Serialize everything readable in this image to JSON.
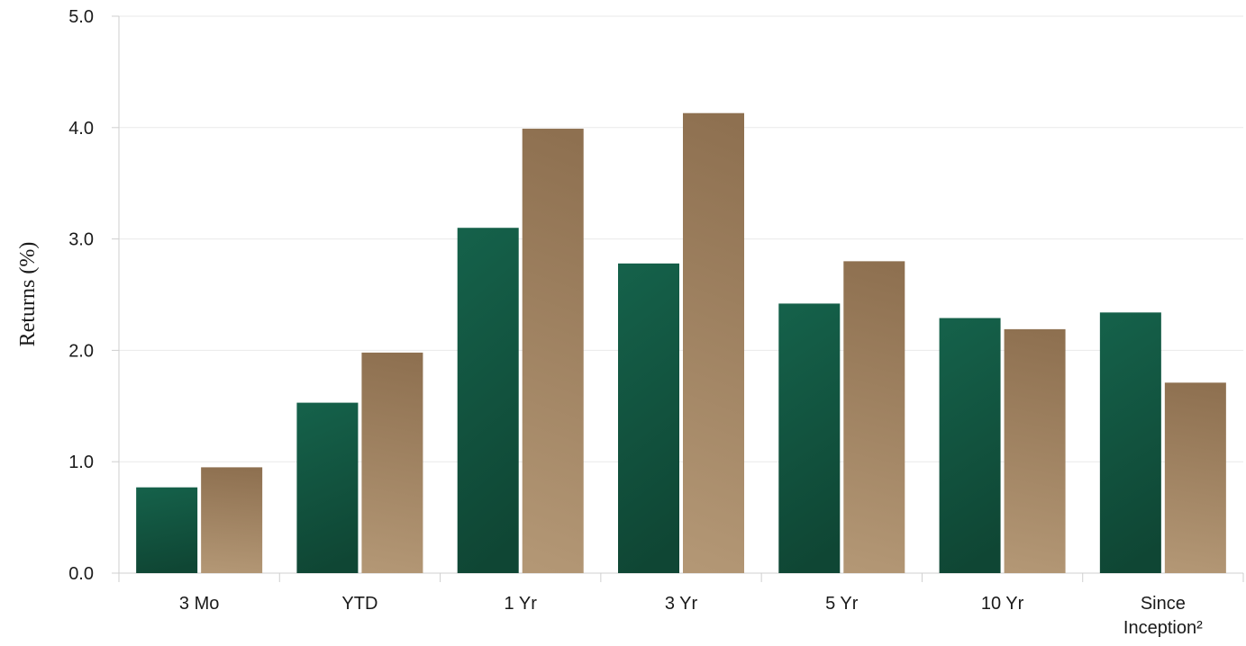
{
  "chart_data": {
    "type": "bar",
    "ylabel": "Returns (%)",
    "xlabel": "",
    "ylim": [
      0,
      5
    ],
    "y_ticks": [
      "0.0",
      "1.0",
      "2.0",
      "3.0",
      "4.0",
      "5.0"
    ],
    "y_tick_values": [
      0,
      1,
      2,
      3,
      4,
      5
    ],
    "grid": true,
    "legend": "none",
    "categories": [
      [
        "3 Mo"
      ],
      [
        "YTD"
      ],
      [
        "1 Yr"
      ],
      [
        "3 Yr"
      ],
      [
        "5 Yr"
      ],
      [
        "10 Yr"
      ],
      [
        "Since",
        "Inception²"
      ]
    ],
    "series": [
      {
        "values": [
          0.77,
          1.53,
          3.1,
          2.78,
          2.42,
          2.29,
          2.34
        ]
      },
      {
        "values": [
          0.95,
          1.98,
          3.99,
          4.13,
          2.8,
          2.19,
          1.71
        ]
      }
    ],
    "colors": {
      "series1_top": "#15614a",
      "series1_bottom": "#0f4634",
      "series2_top": "#8e7050",
      "series2_bottom": "#b39775",
      "grid": "#e9e9e9",
      "axis": "#cfcfcf"
    }
  }
}
